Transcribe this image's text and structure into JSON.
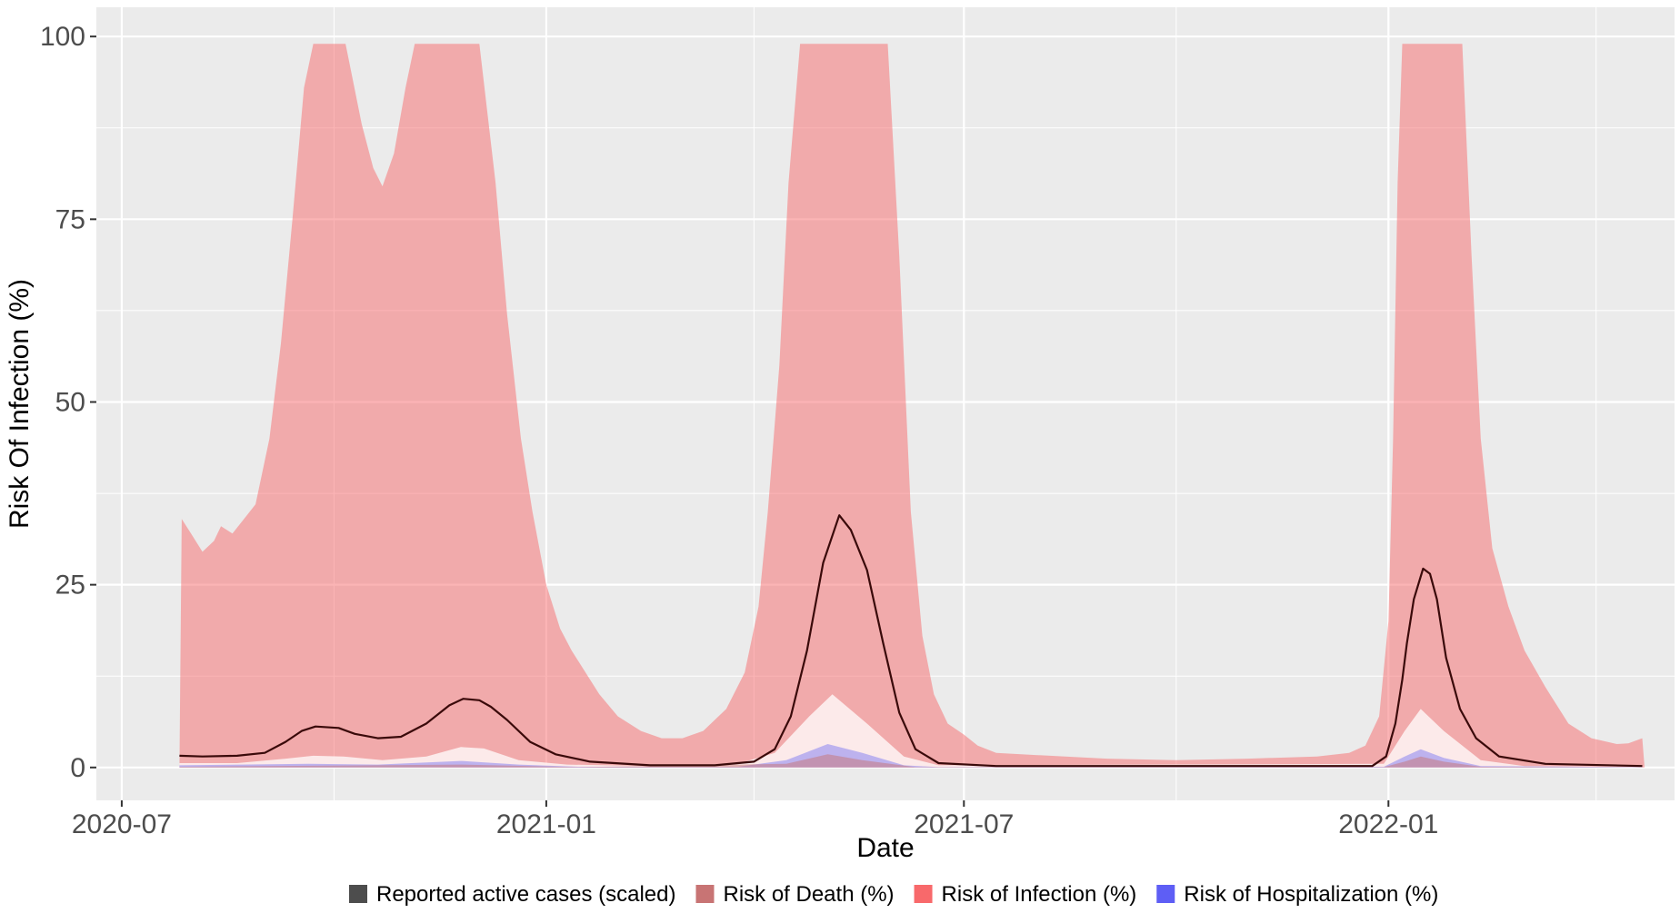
{
  "chart_data": {
    "type": "area",
    "title": "",
    "xlabel": "Date",
    "ylabel": "Risk Of Infection (%)",
    "x_ticks": [
      "2020-07",
      "2021-01",
      "2021-07",
      "2022-01"
    ],
    "y_ticks": [
      "0",
      "25",
      "50",
      "75",
      "100"
    ],
    "xlim": [
      "2020-06-20",
      "2022-05-05"
    ],
    "ylim": [
      -4.5,
      104
    ],
    "grid": true,
    "legend_position": "bottom",
    "colors": {
      "panel": "#EBEBEB",
      "grid": "#FFFFFF",
      "cases": "#4D4D4D",
      "death": "#C87474",
      "infection": "#F8696B",
      "hospitalization": "#5E5EF5"
    },
    "legend": [
      {
        "key": "cases",
        "label": "Reported active cases (scaled)"
      },
      {
        "key": "death",
        "label": "Risk of Death (%)"
      },
      {
        "key": "infection",
        "label": "Risk of Infection (%)"
      },
      {
        "key": "hospitalization",
        "label": "Risk of Hospitalization (%)"
      }
    ],
    "series": [
      {
        "key": "infection",
        "points": [
          [
            "2020-07-26",
            0,
            0
          ],
          [
            "2020-07-27",
            0,
            34
          ],
          [
            "2020-07-31",
            0,
            32
          ],
          [
            "2020-08-05",
            0,
            29.5
          ],
          [
            "2020-08-10",
            0,
            31
          ],
          [
            "2020-08-13",
            0,
            33
          ],
          [
            "2020-08-18",
            0,
            32
          ],
          [
            "2020-08-23",
            0,
            34
          ],
          [
            "2020-08-28",
            0,
            36
          ],
          [
            "2020-09-03",
            0,
            45
          ],
          [
            "2020-09-08",
            0,
            58
          ],
          [
            "2020-09-13",
            0,
            75
          ],
          [
            "2020-09-18",
            0,
            93
          ],
          [
            "2020-09-22",
            0,
            99
          ],
          [
            "2020-10-06",
            0,
            99
          ],
          [
            "2020-10-13",
            0,
            88
          ],
          [
            "2020-10-18",
            0,
            82
          ],
          [
            "2020-10-22",
            0,
            79.5
          ],
          [
            "2020-10-27",
            0,
            84
          ],
          [
            "2020-11-01",
            0,
            93
          ],
          [
            "2020-11-05",
            0,
            99
          ],
          [
            "2020-12-03",
            0,
            99
          ],
          [
            "2020-12-10",
            0,
            80
          ],
          [
            "2020-12-15",
            0,
            62
          ],
          [
            "2020-12-21",
            0,
            45
          ],
          [
            "2020-12-26",
            0,
            35
          ],
          [
            "2021-01-01",
            0,
            25
          ],
          [
            "2021-01-07",
            0,
            19
          ],
          [
            "2021-01-12",
            0,
            16
          ],
          [
            "2021-01-18",
            0,
            13
          ],
          [
            "2021-01-24",
            0,
            10
          ],
          [
            "2021-02-01",
            0,
            7
          ],
          [
            "2021-02-11",
            0,
            5
          ],
          [
            "2021-02-20",
            0,
            4
          ],
          [
            "2021-03-01",
            0,
            4
          ],
          [
            "2021-03-10",
            0,
            5
          ],
          [
            "2021-03-20",
            0,
            8
          ],
          [
            "2021-03-28",
            0,
            13
          ],
          [
            "2021-04-03",
            0,
            22
          ],
          [
            "2021-04-07",
            0,
            35
          ],
          [
            "2021-04-12",
            0,
            55
          ],
          [
            "2021-04-16",
            0,
            80
          ],
          [
            "2021-04-21",
            0,
            99
          ],
          [
            "2021-05-29",
            0,
            99
          ],
          [
            "2021-06-03",
            0,
            70
          ],
          [
            "2021-06-08",
            0,
            35
          ],
          [
            "2021-06-13",
            0,
            18
          ],
          [
            "2021-06-18",
            0,
            10
          ],
          [
            "2021-06-24",
            0,
            6
          ],
          [
            "2021-07-01",
            0,
            4.5
          ],
          [
            "2021-07-07",
            0,
            3
          ],
          [
            "2021-07-15",
            0,
            2
          ],
          [
            "2021-08-01",
            0,
            1.7
          ],
          [
            "2021-09-01",
            0,
            1.2
          ],
          [
            "2021-10-01",
            0,
            1
          ],
          [
            "2021-11-01",
            0,
            1.2
          ],
          [
            "2021-12-01",
            0,
            1.5
          ],
          [
            "2021-12-15",
            0,
            2
          ],
          [
            "2021-12-22",
            0,
            3
          ],
          [
            "2021-12-28",
            0,
            7
          ],
          [
            "2022-01-01",
            0,
            20
          ],
          [
            "2022-01-03",
            0,
            45
          ],
          [
            "2022-01-05",
            0,
            80
          ],
          [
            "2022-01-07",
            0,
            99
          ],
          [
            "2022-02-02",
            0,
            99
          ],
          [
            "2022-02-06",
            0,
            70
          ],
          [
            "2022-02-10",
            0,
            45
          ],
          [
            "2022-02-15",
            0,
            30
          ],
          [
            "2022-02-22",
            0,
            22
          ],
          [
            "2022-03-01",
            0,
            16
          ],
          [
            "2022-03-10",
            0,
            11
          ],
          [
            "2022-03-20",
            0,
            6
          ],
          [
            "2022-03-30",
            0,
            4
          ],
          [
            "2022-04-10",
            0,
            3.2
          ],
          [
            "2022-04-15",
            0,
            3.3
          ],
          [
            "2022-04-21",
            0,
            4
          ],
          [
            "2022-04-22",
            0,
            0
          ]
        ]
      },
      {
        "key": "white",
        "points": [
          [
            "2020-07-26",
            0,
            0.6
          ],
          [
            "2020-08-20",
            0,
            0.6
          ],
          [
            "2020-09-10",
            0,
            1.2
          ],
          [
            "2020-09-22",
            0,
            1.6
          ],
          [
            "2020-10-05",
            0,
            1.5
          ],
          [
            "2020-10-22",
            0,
            1
          ],
          [
            "2020-11-10",
            0,
            1.5
          ],
          [
            "2020-11-25",
            0,
            2.8
          ],
          [
            "2020-12-05",
            0,
            2.6
          ],
          [
            "2020-12-20",
            0,
            1
          ],
          [
            "2021-01-10",
            0,
            0.4
          ],
          [
            "2021-02-15",
            0,
            0.2
          ],
          [
            "2021-03-25",
            0,
            0.5
          ],
          [
            "2021-04-10",
            0,
            2
          ],
          [
            "2021-04-25",
            0,
            7
          ],
          [
            "2021-05-05",
            0,
            10
          ],
          [
            "2021-05-20",
            0,
            6
          ],
          [
            "2021-06-05",
            0,
            1.5
          ],
          [
            "2021-06-20",
            0,
            0.3
          ],
          [
            "2021-12-30",
            0,
            0.5
          ],
          [
            "2022-01-08",
            0,
            5
          ],
          [
            "2022-01-15",
            0,
            8
          ],
          [
            "2022-01-25",
            0,
            5
          ],
          [
            "2022-02-10",
            0,
            1
          ],
          [
            "2022-03-01",
            0,
            0.2
          ],
          [
            "2022-04-21",
            0,
            0.1
          ]
        ]
      },
      {
        "key": "hospitalization",
        "points": [
          [
            "2020-07-26",
            0,
            0.3
          ],
          [
            "2020-09-20",
            0,
            0.5
          ],
          [
            "2020-10-20",
            0,
            0.4
          ],
          [
            "2020-11-25",
            0,
            0.9
          ],
          [
            "2020-12-20",
            0,
            0.4
          ],
          [
            "2021-01-15",
            0,
            0.1
          ],
          [
            "2021-03-25",
            0,
            0.1
          ],
          [
            "2021-04-15",
            0,
            1
          ],
          [
            "2021-05-03",
            0,
            3.2
          ],
          [
            "2021-05-18",
            0,
            2
          ],
          [
            "2021-06-05",
            0,
            0.3
          ],
          [
            "2021-06-20",
            0,
            0.05
          ],
          [
            "2021-12-30",
            0,
            0.1
          ],
          [
            "2022-01-08",
            0,
            1.5
          ],
          [
            "2022-01-15",
            0,
            2.5
          ],
          [
            "2022-01-25",
            0,
            1.3
          ],
          [
            "2022-02-10",
            0,
            0.2
          ],
          [
            "2022-04-21",
            0,
            0.05
          ]
        ]
      },
      {
        "key": "death",
        "points": [
          [
            "2020-07-26",
            0,
            0.1
          ],
          [
            "2020-11-25",
            0,
            0.4
          ],
          [
            "2021-01-15",
            0,
            0.05
          ],
          [
            "2021-04-15",
            0,
            0.5
          ],
          [
            "2021-05-03",
            0,
            1.8
          ],
          [
            "2021-05-18",
            0,
            1
          ],
          [
            "2021-06-10",
            0,
            0.05
          ],
          [
            "2021-12-30",
            0,
            0.05
          ],
          [
            "2022-01-08",
            0,
            0.8
          ],
          [
            "2022-01-15",
            0,
            1.5
          ],
          [
            "2022-01-25",
            0,
            0.8
          ],
          [
            "2022-02-10",
            0,
            0.1
          ],
          [
            "2022-04-21",
            0,
            0.03
          ]
        ]
      },
      {
        "key": "cases",
        "points": [
          [
            "2020-07-26",
            1.6
          ],
          [
            "2020-08-05",
            1.5
          ],
          [
            "2020-08-20",
            1.6
          ],
          [
            "2020-09-01",
            2
          ],
          [
            "2020-09-10",
            3.5
          ],
          [
            "2020-09-17",
            5
          ],
          [
            "2020-09-23",
            5.6
          ],
          [
            "2020-10-03",
            5.4
          ],
          [
            "2020-10-10",
            4.6
          ],
          [
            "2020-10-20",
            4
          ],
          [
            "2020-10-30",
            4.2
          ],
          [
            "2020-11-10",
            6
          ],
          [
            "2020-11-20",
            8.5
          ],
          [
            "2020-11-26",
            9.4
          ],
          [
            "2020-12-03",
            9.2
          ],
          [
            "2020-12-08",
            8.3
          ],
          [
            "2020-12-15",
            6.5
          ],
          [
            "2020-12-25",
            3.5
          ],
          [
            "2021-01-05",
            1.8
          ],
          [
            "2021-01-20",
            0.8
          ],
          [
            "2021-02-15",
            0.3
          ],
          [
            "2021-03-15",
            0.3
          ],
          [
            "2021-04-01",
            0.8
          ],
          [
            "2021-04-10",
            2.5
          ],
          [
            "2021-04-17",
            7
          ],
          [
            "2021-04-24",
            16
          ],
          [
            "2021-05-01",
            28
          ],
          [
            "2021-05-08",
            34.5
          ],
          [
            "2021-05-13",
            32.5
          ],
          [
            "2021-05-20",
            27
          ],
          [
            "2021-05-27",
            17
          ],
          [
            "2021-06-03",
            7.5
          ],
          [
            "2021-06-10",
            2.5
          ],
          [
            "2021-06-20",
            0.6
          ],
          [
            "2021-07-15",
            0.2
          ],
          [
            "2021-12-25",
            0.2
          ],
          [
            "2021-12-31",
            1.5
          ],
          [
            "2022-01-04",
            6
          ],
          [
            "2022-01-07",
            12
          ],
          [
            "2022-01-09",
            17
          ],
          [
            "2022-01-12",
            23
          ],
          [
            "2022-01-16",
            27.2
          ],
          [
            "2022-01-19",
            26.5
          ],
          [
            "2022-01-22",
            23
          ],
          [
            "2022-01-26",
            15
          ],
          [
            "2022-02-01",
            8
          ],
          [
            "2022-02-08",
            4
          ],
          [
            "2022-02-18",
            1.5
          ],
          [
            "2022-03-10",
            0.5
          ],
          [
            "2022-04-21",
            0.2
          ]
        ]
      }
    ]
  }
}
